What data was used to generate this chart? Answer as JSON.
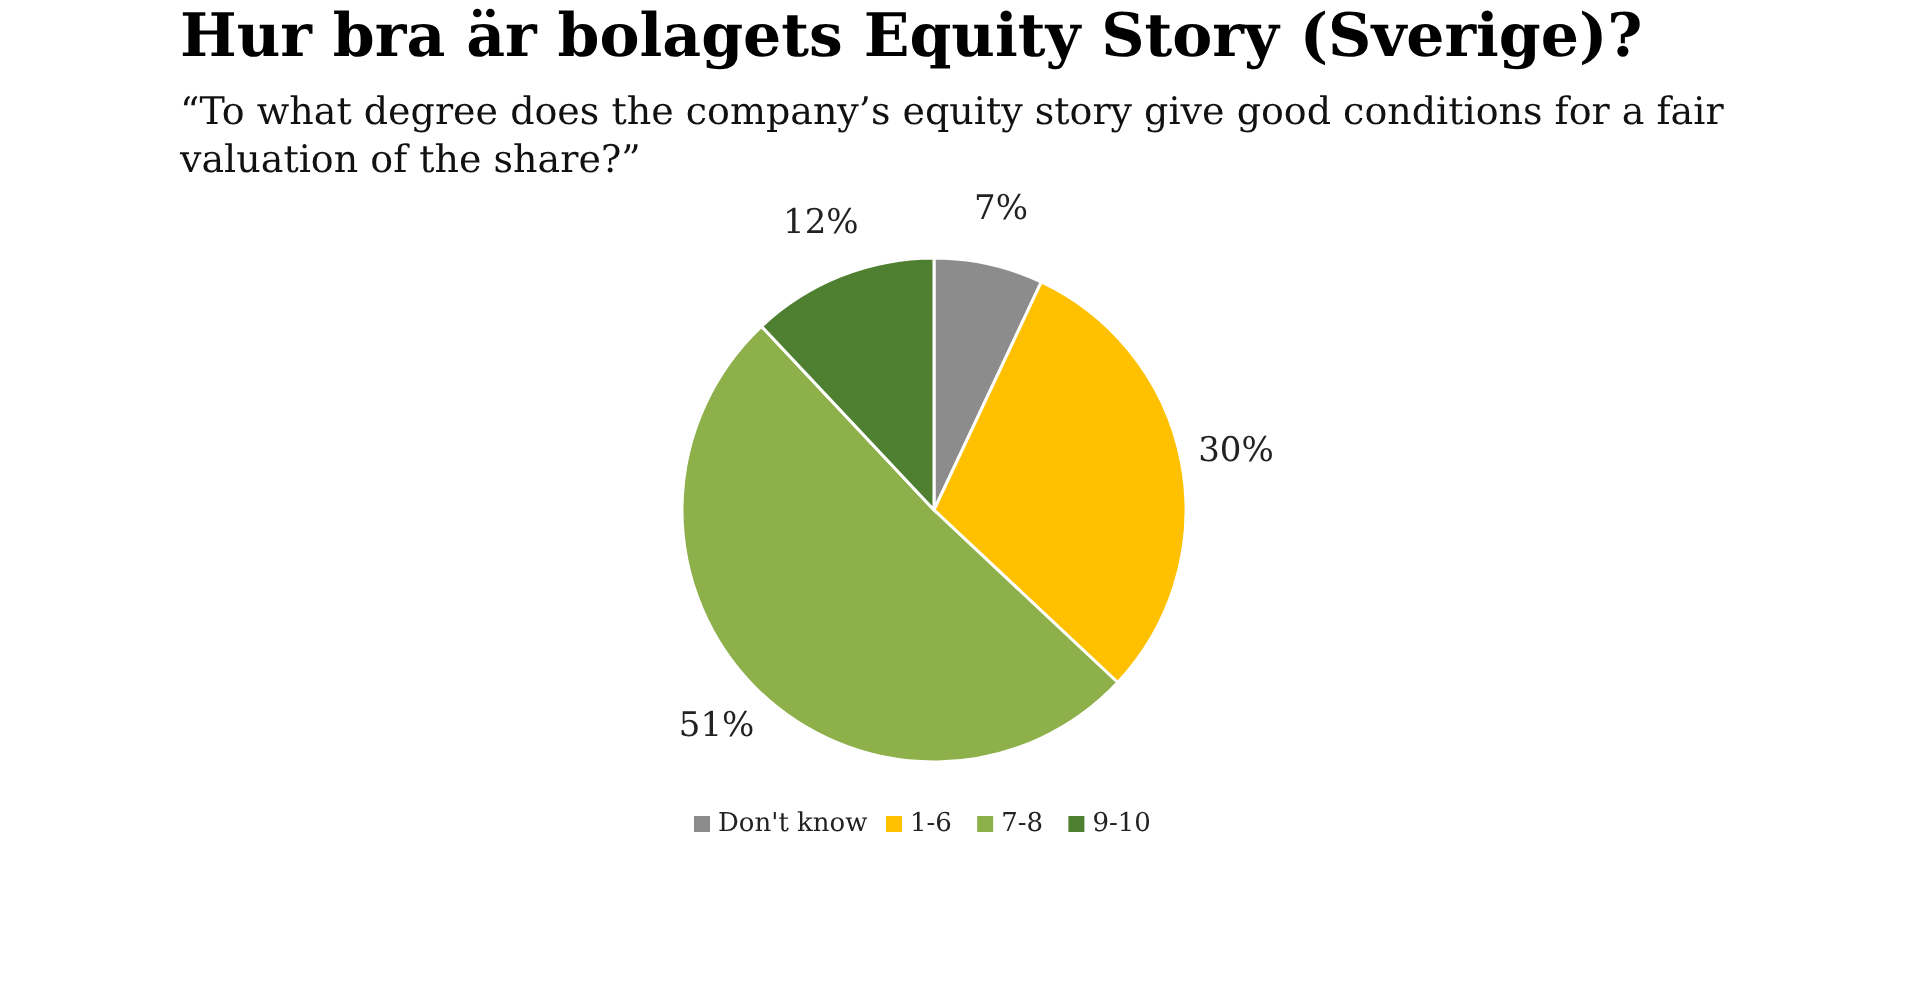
{
  "chart_data": {
    "type": "pie",
    "title": "Hur bra är bolagets Equity Story (Sverige)?",
    "subtitle": "“To what degree does the company’s equity story give good conditions for a fair valuation of the share?”",
    "categories": [
      "Don't know",
      "1-6",
      "7-8",
      "9-10"
    ],
    "values": [
      7,
      30,
      51,
      12
    ],
    "colors": [
      "#8c8c8c",
      "#ffc000",
      "#8db04a",
      "#4f8032"
    ],
    "value_labels": [
      "7%",
      "30%",
      "51%",
      "12%"
    ],
    "legend": "bottom"
  }
}
